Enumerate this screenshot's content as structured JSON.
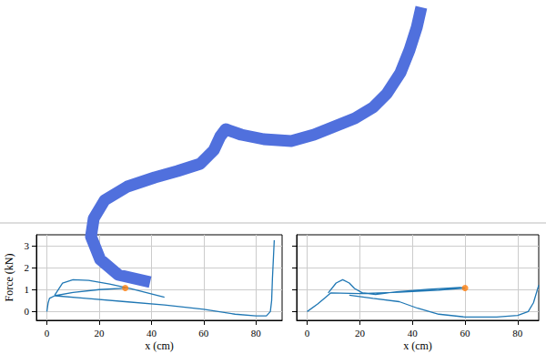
{
  "chart_data": [
    {
      "type": "line",
      "xlim": [
        0,
        600
      ],
      "ylim": [
        0,
        400
      ],
      "tick_labels": false,
      "grid": false,
      "series": [
        {
          "type": "line",
          "marker": "none",
          "x": [
            463,
            458,
            450,
            440,
            425,
            410,
            390,
            370,
            345,
            320,
            290,
            265,
            248,
            242,
            235,
            220,
            195,
            170,
            140,
            115,
            103,
            100,
            110,
            130,
            165
          ],
          "values": [
            392,
            370,
            345,
            320,
            297,
            282,
            270,
            262,
            252,
            245,
            247,
            252,
            258,
            250,
            235,
            220,
            212,
            205,
            195,
            180,
            160,
            140,
            115,
            98,
            90
          ],
          "colors": [
            "#a00000",
            "#d01010",
            "#f04010",
            "#ff8020",
            "#ffc030",
            "#f0f040",
            "#d0f050",
            "#a0f070",
            "#80f0a0",
            "#60f0c0",
            "#60f0c0",
            "#70f0a0",
            "#80f080",
            "#90f070",
            "#b0f050",
            "#e0f040",
            "#ffe030",
            "#ffc020",
            "#ff9020",
            "#ff5020",
            "#e83020",
            "#e06060",
            "#e08080",
            "#e09090",
            "#e0a0a0"
          ]
        }
      ]
    },
    {
      "type": "line",
      "xlabel": "x (cm)",
      "ylabel": "Force (kN)",
      "xlim": [
        -4,
        90
      ],
      "xticks": [
        0,
        20,
        40,
        60,
        80
      ],
      "ylim": [
        -0.4,
        3.5
      ],
      "yticks": [
        0,
        1,
        2,
        3
      ],
      "grid": true,
      "series": [
        {
          "type": "line",
          "color": "#1f77b4",
          "marker": "none",
          "x": [
            0,
            0.5,
            1,
            3,
            10,
            20,
            30,
            null,
            3,
            6,
            10,
            16,
            24,
            32,
            45,
            null,
            3,
            15,
            30,
            45,
            60,
            72,
            80,
            84,
            85.5,
            86,
            86.3,
            86.7,
            87
          ],
          "values": [
            0,
            0.4,
            0.6,
            0.72,
            0.87,
            1.0,
            1.07,
            null,
            0.75,
            1.3,
            1.45,
            1.42,
            1.25,
            1.05,
            0.65,
            null,
            0.72,
            0.6,
            0.45,
            0.3,
            0.1,
            -0.12,
            -0.2,
            -0.2,
            0.0,
            0.5,
            1.5,
            2.5,
            3.25
          ]
        },
        {
          "type": "scatter",
          "color": "#ff7f0e",
          "marker": "circle",
          "x": [
            30
          ],
          "values": [
            1.07
          ]
        }
      ]
    },
    {
      "type": "line",
      "xlabel": "x (cm)",
      "xlim": [
        -4,
        88
      ],
      "xticks": [
        0,
        20,
        40,
        60,
        80
      ],
      "ylim": [
        -0.4,
        3.5
      ],
      "yticks": [
        0,
        1,
        2,
        3
      ],
      "grid": true,
      "tick_labels": "x",
      "series": [
        {
          "type": "line",
          "color": "#1f77b4",
          "marker": "none",
          "x": [
            0,
            4,
            7,
            9,
            20,
            35,
            50,
            60,
            null,
            8,
            11,
            13.5,
            16,
            18,
            21,
            26,
            34,
            46,
            58,
            60,
            null,
            16,
            25,
            35,
            42,
            50,
            60,
            72,
            80,
            84,
            86,
            88
          ],
          "values": [
            0,
            0.35,
            0.65,
            0.85,
            0.82,
            0.88,
            0.98,
            1.07,
            null,
            0.85,
            1.3,
            1.45,
            1.3,
            1.05,
            0.85,
            0.78,
            0.9,
            1.02,
            1.1,
            1.07,
            null,
            0.75,
            0.6,
            0.45,
            0.15,
            -0.12,
            -0.25,
            -0.25,
            -0.18,
            0.0,
            0.4,
            1.2
          ]
        },
        {
          "type": "scatter",
          "color": "#ff7f0e",
          "marker": "circle",
          "x": [
            60
          ],
          "values": [
            1.07
          ]
        }
      ]
    }
  ]
}
